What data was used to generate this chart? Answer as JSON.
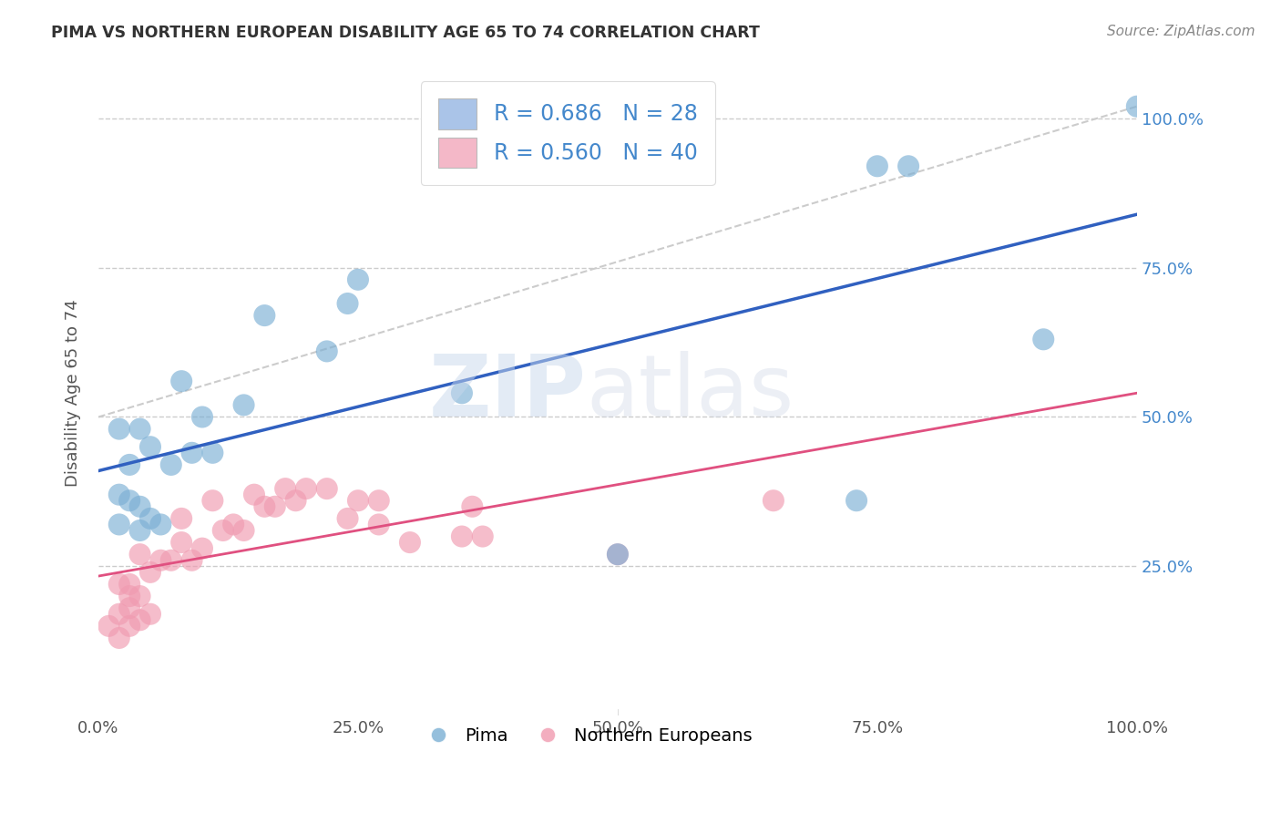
{
  "title": "PIMA VS NORTHERN EUROPEAN DISABILITY AGE 65 TO 74 CORRELATION CHART",
  "source": "Source: ZipAtlas.com",
  "ylabel": "Disability Age 65 to 74",
  "xlim": [
    0,
    1.0
  ],
  "ylim": [
    0,
    1.08
  ],
  "x_tick_labels": [
    "0.0%",
    "25.0%",
    "50.0%",
    "75.0%",
    "100.0%"
  ],
  "x_tick_vals": [
    0,
    0.25,
    0.5,
    0.75,
    1.0
  ],
  "y_tick_vals": [
    0.25,
    0.5,
    0.75,
    1.0
  ],
  "right_tick_labels": [
    "25.0%",
    "50.0%",
    "75.0%",
    "100.0%"
  ],
  "legend1_label": "R = 0.686   N = 28",
  "legend2_label": "R = 0.560   N = 40",
  "legend_color1": "#aac4e8",
  "legend_color2": "#f4b8c8",
  "pima_color": "#7bafd4",
  "ne_color": "#f09ab0",
  "line1_color": "#3060c0",
  "line2_color": "#e05080",
  "trendline_color": "#cccccc",
  "background_color": "#ffffff",
  "grid_color": "#cccccc",
  "watermark_zip": "ZIP",
  "watermark_atlas": "atlas",
  "pima_x": [
    0.02,
    0.02,
    0.02,
    0.03,
    0.03,
    0.04,
    0.04,
    0.04,
    0.05,
    0.05,
    0.06,
    0.07,
    0.08,
    0.09,
    0.1,
    0.11,
    0.14,
    0.16,
    0.22,
    0.24,
    0.25,
    0.35,
    0.5,
    0.73,
    0.75,
    0.78,
    0.91,
    1.0
  ],
  "pima_y": [
    0.32,
    0.37,
    0.48,
    0.36,
    0.42,
    0.31,
    0.35,
    0.48,
    0.33,
    0.45,
    0.32,
    0.42,
    0.56,
    0.44,
    0.5,
    0.44,
    0.52,
    0.67,
    0.61,
    0.69,
    0.73,
    0.54,
    0.27,
    0.36,
    0.92,
    0.92,
    0.63,
    1.02
  ],
  "ne_x": [
    0.01,
    0.02,
    0.02,
    0.02,
    0.03,
    0.03,
    0.03,
    0.03,
    0.04,
    0.04,
    0.04,
    0.05,
    0.05,
    0.06,
    0.07,
    0.08,
    0.08,
    0.09,
    0.1,
    0.11,
    0.12,
    0.13,
    0.14,
    0.15,
    0.16,
    0.17,
    0.18,
    0.19,
    0.2,
    0.22,
    0.24,
    0.25,
    0.27,
    0.27,
    0.3,
    0.35,
    0.36,
    0.37,
    0.5,
    0.65
  ],
  "ne_y": [
    0.15,
    0.13,
    0.17,
    0.22,
    0.15,
    0.18,
    0.2,
    0.22,
    0.16,
    0.2,
    0.27,
    0.17,
    0.24,
    0.26,
    0.26,
    0.29,
    0.33,
    0.26,
    0.28,
    0.36,
    0.31,
    0.32,
    0.31,
    0.37,
    0.35,
    0.35,
    0.38,
    0.36,
    0.38,
    0.38,
    0.33,
    0.36,
    0.32,
    0.36,
    0.29,
    0.3,
    0.35,
    0.3,
    0.27,
    0.36
  ]
}
